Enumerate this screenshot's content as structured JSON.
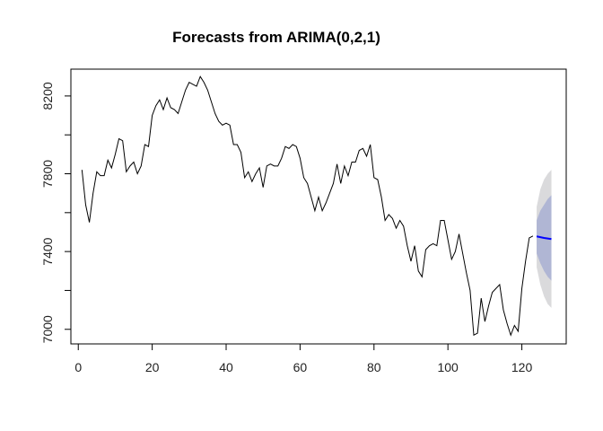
{
  "chart_data": {
    "type": "line",
    "title": "Forecasts from ARIMA(0,2,1)",
    "xlabel": "",
    "ylabel": "",
    "xlim": [
      -2,
      132
    ],
    "ylim": [
      6925,
      8338
    ],
    "x_ticks": [
      0,
      20,
      40,
      60,
      80,
      100,
      120
    ],
    "y_ticks": [
      7000,
      7200,
      7400,
      7600,
      7800,
      8000,
      8200
    ],
    "y_tick_labels": [
      7000,
      7400,
      7800,
      8200
    ],
    "grid": false,
    "legend": "none",
    "series": [
      {
        "kind": "observed",
        "color": "#000000",
        "x": [
          1,
          2,
          3,
          4,
          5,
          6,
          7,
          8,
          9,
          10,
          11,
          12,
          13,
          14,
          15,
          16,
          17,
          18,
          19,
          20,
          21,
          22,
          23,
          24,
          25,
          26,
          27,
          28,
          29,
          30,
          31,
          32,
          33,
          34,
          35,
          36,
          37,
          38,
          39,
          40,
          41,
          42,
          43,
          44,
          45,
          46,
          47,
          48,
          49,
          50,
          51,
          52,
          53,
          54,
          55,
          56,
          57,
          58,
          59,
          60,
          61,
          62,
          63,
          64,
          65,
          66,
          67,
          68,
          69,
          70,
          71,
          72,
          73,
          74,
          75,
          76,
          77,
          78,
          79,
          80,
          81,
          82,
          83,
          84,
          85,
          86,
          87,
          88,
          89,
          90,
          91,
          92,
          93,
          94,
          95,
          96,
          97,
          98,
          99,
          100,
          101,
          102,
          103,
          104,
          105,
          106,
          107,
          108,
          109,
          110,
          111,
          112,
          113,
          114,
          115,
          116,
          117,
          118,
          119,
          120,
          121,
          122,
          123
        ],
        "y": [
          7820,
          7640,
          7550,
          7700,
          7810,
          7790,
          7790,
          7870,
          7830,
          7900,
          7980,
          7970,
          7810,
          7840,
          7860,
          7800,
          7840,
          7950,
          7940,
          8100,
          8150,
          8180,
          8130,
          8190,
          8140,
          8130,
          8110,
          8170,
          8230,
          8270,
          8260,
          8250,
          8300,
          8270,
          8230,
          8170,
          8110,
          8070,
          8050,
          8060,
          8050,
          7950,
          7950,
          7910,
          7780,
          7810,
          7760,
          7800,
          7830,
          7730,
          7840,
          7850,
          7840,
          7840,
          7880,
          7940,
          7930,
          7950,
          7940,
          7880,
          7780,
          7750,
          7680,
          7610,
          7680,
          7610,
          7650,
          7700,
          7750,
          7850,
          7750,
          7840,
          7790,
          7860,
          7860,
          7920,
          7930,
          7890,
          7950,
          7780,
          7770,
          7680,
          7560,
          7590,
          7570,
          7520,
          7560,
          7530,
          7430,
          7350,
          7430,
          7300,
          7270,
          7410,
          7430,
          7440,
          7430,
          7560,
          7560,
          7460,
          7360,
          7400,
          7490,
          7390,
          7290,
          7200,
          6970,
          6980,
          7160,
          7040,
          7120,
          7190,
          7210,
          7230,
          7100,
          7030,
          6970,
          7020,
          6990,
          7210,
          7350,
          7470,
          7480
        ]
      },
      {
        "kind": "forecast",
        "color": "#0000ff",
        "x": [
          124,
          125,
          126,
          127,
          128
        ],
        "y": [
          7478,
          7474,
          7470,
          7467,
          7464
        ],
        "lower80": [
          7390,
          7340,
          7300,
          7270,
          7250
        ],
        "upper80": [
          7560,
          7610,
          7640,
          7670,
          7690
        ],
        "lower95": [
          7320,
          7230,
          7170,
          7130,
          7110
        ],
        "upper95": [
          7630,
          7720,
          7770,
          7800,
          7820
        ],
        "band80_color": "#b0b6d4",
        "band95_color": "#dadadc"
      }
    ]
  }
}
